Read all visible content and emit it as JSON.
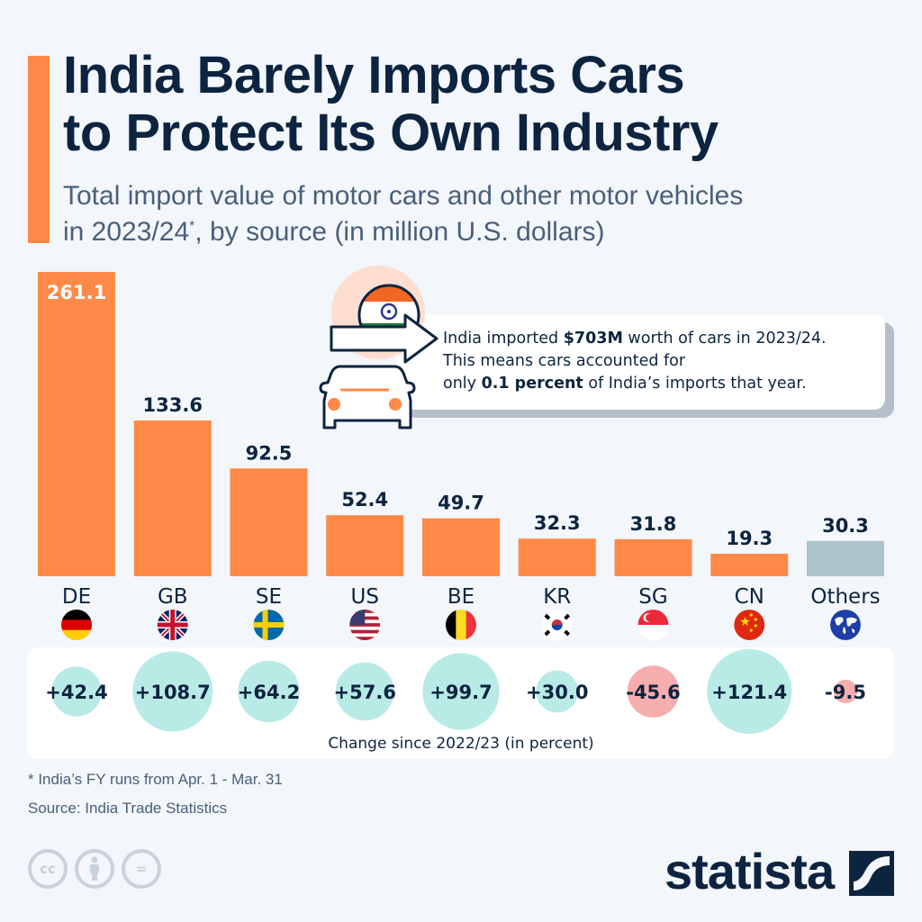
{
  "header": {
    "title_line1": "India Barely Imports Cars",
    "title_line2": "to Protect Its Own Industry",
    "subtitle_line1": "Total import value of motor cars and other motor vehicles",
    "subtitle_line2_a": "in 2023/24",
    "subtitle_line2_sup": "*",
    "subtitle_line2_b": ", by source (in million U.S. dollars)"
  },
  "callout": {
    "line1_a": "India imported ",
    "line1_bold": "$703M",
    "line1_b": " worth of cars in 2023/24.",
    "line2": "This means cars accounted for",
    "line3_a": "only ",
    "line3_bold": "0.1 percent",
    "line3_b": " of India’s imports that year.",
    "icons": [
      "india-flag-icon",
      "arrow-right-icon",
      "car-icon"
    ]
  },
  "colors": {
    "bar": "#ff8a47",
    "bar_other": "#adc3cc",
    "positive_bubble": "#b8eae6",
    "negative_bubble": "#f6adad",
    "text_dark": "#0d2440",
    "accent": "#ff8a47"
  },
  "chart_data": {
    "type": "bar",
    "title": "India Barely Imports Cars to Protect Its Own Industry",
    "ylabel": "Import value (million U.S. dollars)",
    "xlabel": "",
    "ylim": [
      0,
      261.1
    ],
    "grid": false,
    "categories": [
      "DE",
      "GB",
      "SE",
      "US",
      "BE",
      "KR",
      "SG",
      "CN",
      "Others"
    ],
    "flags": [
      "germany-flag-icon",
      "uk-flag-icon",
      "sweden-flag-icon",
      "usa-flag-icon",
      "belgium-flag-icon",
      "south-korea-flag-icon",
      "singapore-flag-icon",
      "china-flag-icon",
      "globe-icon"
    ],
    "values": [
      261.1,
      133.6,
      92.5,
      52.4,
      49.7,
      32.3,
      31.8,
      19.3,
      30.3
    ],
    "value_labels": [
      "261.1",
      "133.6",
      "92.5",
      "52.4",
      "49.7",
      "32.3",
      "31.8",
      "19.3",
      "30.3"
    ],
    "change_pct": [
      42.4,
      108.7,
      64.2,
      57.6,
      99.7,
      30.0,
      -45.6,
      121.4,
      -9.5
    ],
    "change_labels": [
      "+42.4",
      "+108.7",
      "+64.2",
      "+57.6",
      "+99.7",
      "+30.0",
      "-45.6",
      "+121.4",
      "-9.5"
    ],
    "change_caption": "Change since 2022/23 (in percent)"
  },
  "footer": {
    "footnote": "* India’s FY runs from Apr. 1 - Mar. 31",
    "source": "Source: India Trade Statistics",
    "license_icons": [
      "cc-icon",
      "attribution-icon",
      "no-derivatives-icon"
    ],
    "cc_label": "cc",
    "nd_label": "=",
    "logo": "statista"
  }
}
